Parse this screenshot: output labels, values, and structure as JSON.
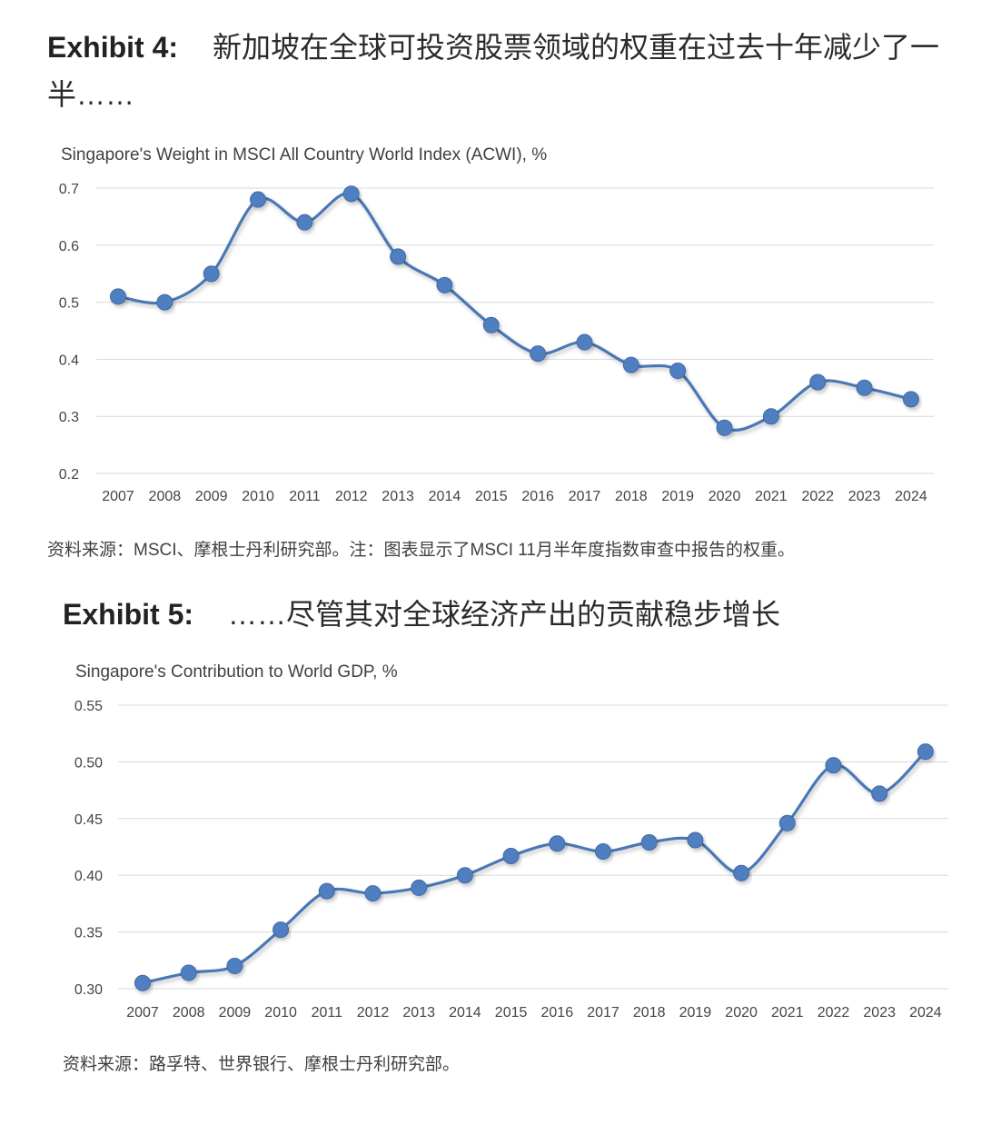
{
  "exhibits": [
    {
      "label": "Exhibit 4:",
      "title": "新加坡在全球可投资股票领域的权重在过去十年减少了一半……",
      "subtitle": "Singapore's Weight in MSCI All Country World Index (ACWI), %",
      "source": "资料来源：MSCI、摩根士丹利研究部。注：图表显示了MSCI 11月半年度指数审查中报告的权重。"
    },
    {
      "label": "Exhibit 5:",
      "title": "……尽管其对全球经济产出的贡献稳步增长",
      "subtitle": "Singapore's Contribution to World GDP, %",
      "source": "资料来源：路孚特、世界银行、摩根士丹利研究部。"
    }
  ],
  "colors": {
    "line": "#4a78b5",
    "marker": "#4f7fc0",
    "grid": "#d9d9d9"
  },
  "chart_data": [
    {
      "type": "line",
      "title": "Singapore's Weight in MSCI All Country World Index (ACWI), %",
      "categories": [
        "2007",
        "2008",
        "2009",
        "2010",
        "2011",
        "2012",
        "2013",
        "2014",
        "2015",
        "2016",
        "2017",
        "2018",
        "2019",
        "2020",
        "2021",
        "2022",
        "2023",
        "2024"
      ],
      "values": [
        0.51,
        0.5,
        0.55,
        0.68,
        0.64,
        0.69,
        0.58,
        0.53,
        0.46,
        0.41,
        0.43,
        0.39,
        0.38,
        0.28,
        0.3,
        0.36,
        0.35,
        0.33
      ],
      "ylim": [
        0.2,
        0.7
      ],
      "yticks": [
        "0.2",
        "0.3",
        "0.4",
        "0.5",
        "0.6",
        "0.7"
      ],
      "grid": true,
      "smooth": true
    },
    {
      "type": "line",
      "title": "Singapore's Contribution to World GDP, %",
      "categories": [
        "2007",
        "2008",
        "2009",
        "2010",
        "2011",
        "2012",
        "2013",
        "2014",
        "2015",
        "2016",
        "2017",
        "2018",
        "2019",
        "2020",
        "2021",
        "2022",
        "2023",
        "2024"
      ],
      "values": [
        0.305,
        0.314,
        0.32,
        0.352,
        0.386,
        0.384,
        0.389,
        0.4,
        0.417,
        0.428,
        0.421,
        0.429,
        0.431,
        0.402,
        0.446,
        0.497,
        0.472,
        0.509
      ],
      "ylim": [
        0.3,
        0.55
      ],
      "yticks": [
        "0.30",
        "0.35",
        "0.40",
        "0.45",
        "0.50",
        "0.55"
      ],
      "grid": true,
      "smooth": true
    }
  ]
}
